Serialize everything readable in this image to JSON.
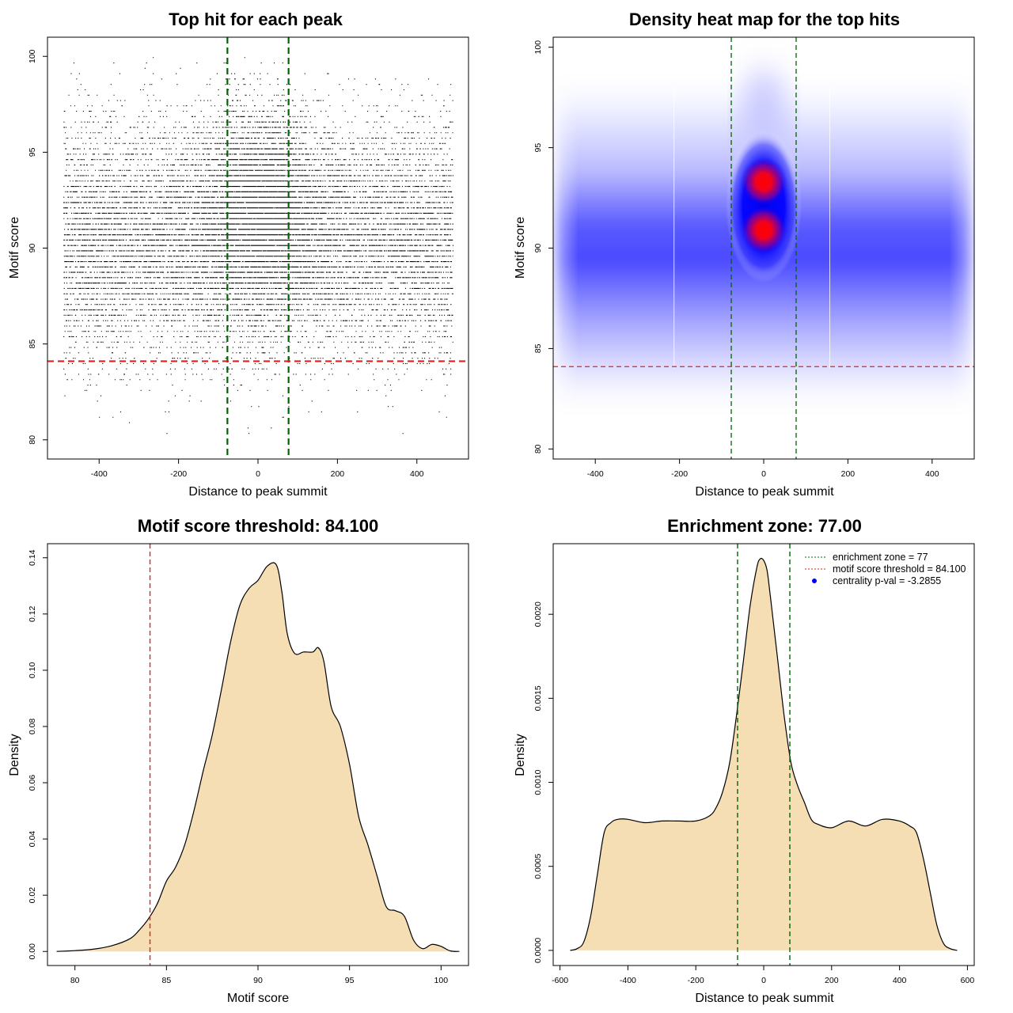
{
  "chart_data": [
    {
      "type": "scatter",
      "title": "Top hit for each peak",
      "xlabel": "Distance to peak summit",
      "ylabel": "Motif score",
      "xlim": [
        -530,
        530
      ],
      "ylim": [
        79,
        101
      ],
      "x_ticks": [
        -400,
        -200,
        0,
        200,
        400
      ],
      "y_ticks": [
        80,
        85,
        90,
        95,
        100
      ],
      "x_tick_labels": [
        "-400",
        "-200",
        "0",
        "200",
        "400"
      ],
      "y_tick_labels": [
        "80",
        "85",
        "90",
        "95",
        "100"
      ],
      "points_summary": {
        "x_range": [
          -490,
          490
        ],
        "y_range": [
          80,
          100
        ],
        "background_center": 90.5,
        "summit_cluster_center": 92,
        "summit_cluster_x_sd": 75
      },
      "vlines": [
        -77,
        77
      ],
      "hline": 84.1,
      "vline_color": "#006400",
      "hline_color": "#e02020"
    },
    {
      "type": "heatmap",
      "title": "Density heat map for the top hits",
      "xlabel": "Distance to peak summit",
      "ylabel": "Motif score",
      "xlim": [
        -500,
        500
      ],
      "ylim": [
        79.5,
        100.5
      ],
      "x_ticks": [
        -400,
        -200,
        0,
        200,
        400
      ],
      "y_ticks": [
        80,
        85,
        90,
        95,
        100
      ],
      "x_tick_labels": [
        "-400",
        "-200",
        "0",
        "200",
        "400"
      ],
      "y_tick_labels": [
        "80",
        "85",
        "90",
        "95",
        "100"
      ],
      "hotspots": [
        {
          "x": 0,
          "y": 93.3
        },
        {
          "x": 0,
          "y": 90.9
        }
      ],
      "background_band_center": 90.3,
      "vlines": [
        -77,
        77
      ],
      "hline": 84.1,
      "colors": [
        "#ffffff",
        "#0000ff",
        "#ff0000"
      ]
    },
    {
      "type": "area",
      "title": "Motif score threshold: 84.100",
      "xlabel": "Motif score",
      "ylabel": "Density",
      "xlim": [
        78.5,
        101.5
      ],
      "ylim": [
        -0.005,
        0.145
      ],
      "x_ticks": [
        80,
        85,
        90,
        95,
        100
      ],
      "y_ticks": [
        0,
        0.02,
        0.04,
        0.06,
        0.08,
        0.1,
        0.12,
        0.14
      ],
      "x_tick_labels": [
        "80",
        "85",
        "90",
        "95",
        "100"
      ],
      "y_tick_labels": [
        "0.00",
        "0.02",
        "0.04",
        "0.06",
        "0.08",
        "0.10",
        "0.12",
        "0.14"
      ],
      "x": [
        79,
        80,
        81,
        82,
        83,
        83.5,
        84,
        84.5,
        85,
        85.5,
        86,
        86.5,
        87,
        87.5,
        88,
        88.5,
        89,
        89.5,
        90,
        90.5,
        91,
        91.3,
        91.6,
        92,
        92.5,
        93,
        93.3,
        93.6,
        94,
        94.5,
        95,
        95.5,
        96,
        96.5,
        97,
        97.5,
        98,
        98.5,
        99,
        99.5,
        100,
        100.5,
        101
      ],
      "y": [
        0,
        0.0003,
        0.0008,
        0.002,
        0.0045,
        0.0075,
        0.0115,
        0.017,
        0.025,
        0.03,
        0.038,
        0.05,
        0.064,
        0.077,
        0.093,
        0.11,
        0.123,
        0.129,
        0.132,
        0.137,
        0.1375,
        0.128,
        0.113,
        0.106,
        0.1065,
        0.1065,
        0.108,
        0.103,
        0.087,
        0.08,
        0.0665,
        0.048,
        0.038,
        0.027,
        0.016,
        0.0145,
        0.0125,
        0.004,
        0.001,
        0.0025,
        0.0018,
        0.0002,
        0
      ],
      "fill_color": "#f5deb3",
      "vline": 84.1,
      "vline_color": "#e02020"
    },
    {
      "type": "area",
      "title": "Enrichment zone: 77.00",
      "xlabel": "Distance to peak summit",
      "ylabel": "Density",
      "xlim": [
        -620,
        620
      ],
      "ylim": [
        -9e-05,
        0.00242
      ],
      "x_ticks": [
        -600,
        -400,
        -200,
        0,
        200,
        400,
        600
      ],
      "y_ticks": [
        0,
        0.0005,
        0.001,
        0.0015,
        0.002
      ],
      "x_tick_labels": [
        "-600",
        "-400",
        "-200",
        "0",
        "200",
        "400",
        "600"
      ],
      "y_tick_labels": [
        "0.0000",
        "0.0005",
        "0.0010",
        "0.0015",
        "0.0020"
      ],
      "x": [
        -570,
        -550,
        -530,
        -510,
        -490,
        -470,
        -450,
        -430,
        -400,
        -350,
        -300,
        -250,
        -200,
        -160,
        -140,
        -120,
        -100,
        -80,
        -60,
        -40,
        -20,
        -10,
        0,
        10,
        20,
        40,
        60,
        80,
        100,
        120,
        140,
        160,
        200,
        250,
        300,
        350,
        400,
        430,
        450,
        470,
        490,
        510,
        530,
        550,
        570
      ],
      "y": [
        0,
        1e-05,
        5e-05,
        0.0002,
        0.00045,
        0.0007,
        0.00076,
        0.00078,
        0.00078,
        0.00076,
        0.00077,
        0.00077,
        0.00077,
        0.0008,
        0.00085,
        0.00095,
        0.00112,
        0.0014,
        0.00172,
        0.00205,
        0.00228,
        0.00233,
        0.00232,
        0.00226,
        0.0021,
        0.00175,
        0.0014,
        0.00112,
        0.00098,
        0.00088,
        0.00078,
        0.00075,
        0.00073,
        0.00077,
        0.00074,
        0.00078,
        0.00077,
        0.00074,
        0.0007,
        0.00055,
        0.00035,
        0.00015,
        4e-05,
        1e-05,
        0
      ],
      "fill_color": "#f5deb3",
      "vlines": [
        -77,
        77
      ],
      "vline_color": "#006400",
      "legend": {
        "position": "top-right",
        "entries": [
          {
            "label": "enrichment zone = 77",
            "style": "dotted-line",
            "color": "#006400"
          },
          {
            "label": "motif score threshold = 84.100",
            "style": "dotted-line",
            "color": "#e02020"
          },
          {
            "label": "centrality p-val = -3.2855",
            "style": "point",
            "color": "#0000ff"
          }
        ]
      }
    }
  ]
}
